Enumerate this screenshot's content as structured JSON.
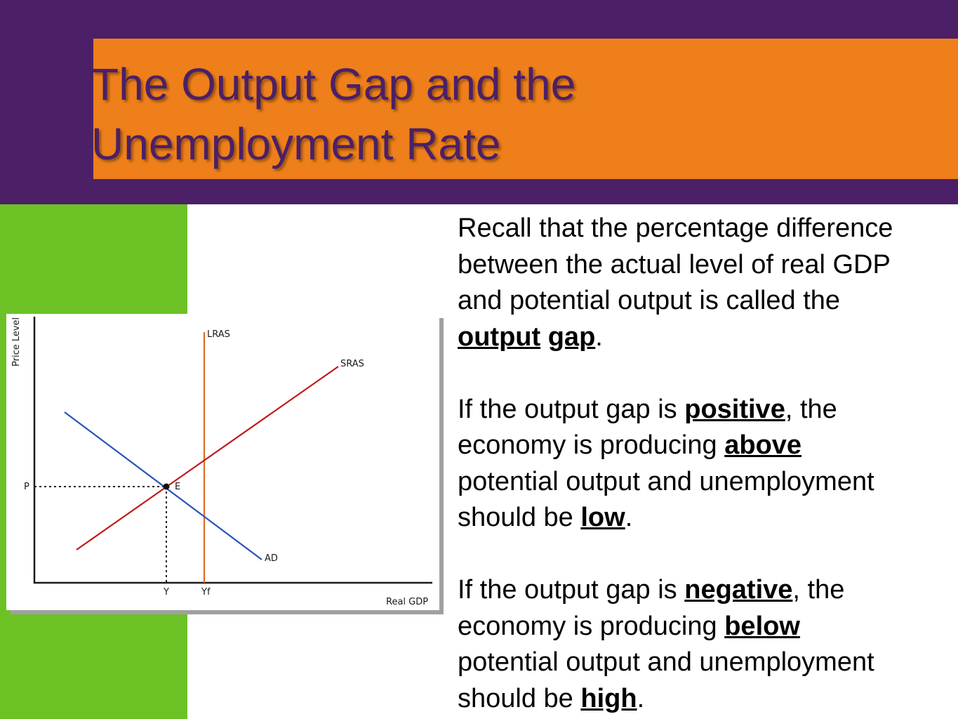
{
  "slide": {
    "title_line1": "The Output Gap and the",
    "title_line2": "Unemployment Rate"
  },
  "colors": {
    "purple": "#4b2066",
    "orange": "#ee7f1a",
    "green": "#6cc224",
    "lras": "#e06a1f",
    "sras": "#c0191a",
    "ad": "#2a52b8"
  },
  "diagram": {
    "y_axis_label": "Price Level",
    "x_axis_label": "Real GDP",
    "curves": {
      "lras": "LRAS",
      "sras": "SRAS",
      "ad": "AD"
    },
    "points": {
      "price": "P",
      "equilibrium": "E",
      "output": "Y",
      "potential_output": "Yf"
    }
  },
  "paragraph1": {
    "line1": "Recall that the percentage difference",
    "line2": "between the actual level of real GDP",
    "line3": "and potential output is called the",
    "kw1": "output",
    "kw2": "gap",
    "end": "."
  },
  "paragraph2": {
    "a": "If the output gap is ",
    "kw1": "positive",
    "b": ", the",
    "c": "economy is producing ",
    "kw2": "above",
    "d": "potential output and unemployment",
    "e": "should be ",
    "kw3": "low",
    "end": "."
  },
  "paragraph3": {
    "a": "If the output gap is ",
    "kw1": "negative",
    "b": ", the",
    "c": "economy is producing ",
    "kw2": "below",
    "d": "potential output and unemployment",
    "e": "should be ",
    "kw3": "high",
    "end": "."
  }
}
